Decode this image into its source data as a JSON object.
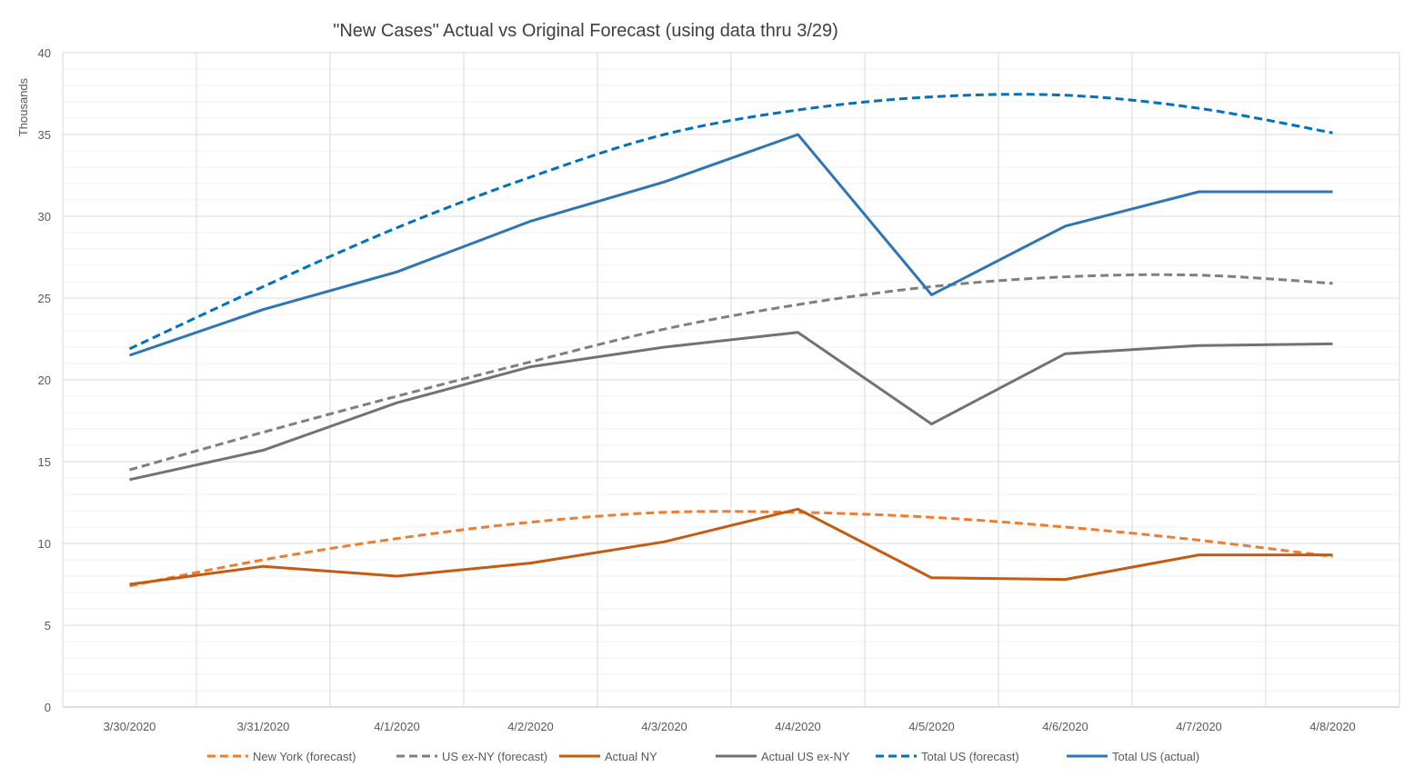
{
  "chart_data": {
    "type": "line",
    "title": "\"New Cases\" Actual vs Original Forecast (using data thru 3/29)",
    "xlabel": "",
    "ylabel": "Thousands",
    "ylim": [
      0,
      40
    ],
    "y_ticks": [
      0,
      5,
      10,
      15,
      20,
      25,
      30,
      35,
      40
    ],
    "grid": true,
    "legend_position": "bottom",
    "categories": [
      "3/30/2020",
      "3/31/2020",
      "4/1/2020",
      "4/2/2020",
      "4/3/2020",
      "4/4/2020",
      "4/5/2020",
      "4/6/2020",
      "4/7/2020",
      "4/8/2020"
    ],
    "series": [
      {
        "name": "New York (forecast)",
        "color": "#ED7D31",
        "style": "dashed",
        "values": [
          7.4,
          9.0,
          10.3,
          11.3,
          11.9,
          11.9,
          11.6,
          11.0,
          10.2,
          9.2
        ]
      },
      {
        "name": "US ex-NY (forecast)",
        "color": "#7F7F7F",
        "style": "dashed",
        "values": [
          14.5,
          16.8,
          19.0,
          21.1,
          23.1,
          24.6,
          25.7,
          26.3,
          26.4,
          25.9
        ]
      },
      {
        "name": "Actual NY",
        "color": "#C55A11",
        "style": "solid",
        "values": [
          7.5,
          8.6,
          8.0,
          8.8,
          10.1,
          12.1,
          7.9,
          7.8,
          9.3,
          9.3
        ]
      },
      {
        "name": "Actual US ex-NY",
        "color": "#767171",
        "style": "solid",
        "values": [
          13.9,
          15.7,
          18.6,
          20.8,
          22.0,
          22.9,
          17.3,
          21.6,
          22.1,
          22.2
        ]
      },
      {
        "name": "Total US (forecast)",
        "color": "#0070C0",
        "style": "dashed",
        "values": [
          21.9,
          25.7,
          29.3,
          32.4,
          35.0,
          36.5,
          37.3,
          37.4,
          36.6,
          35.1
        ]
      },
      {
        "name": "Total US (actual)",
        "color": "#2E75B6",
        "style": "solid",
        "values": [
          21.5,
          24.3,
          26.6,
          29.7,
          32.1,
          35.0,
          25.2,
          29.4,
          31.5,
          31.5
        ]
      }
    ]
  }
}
